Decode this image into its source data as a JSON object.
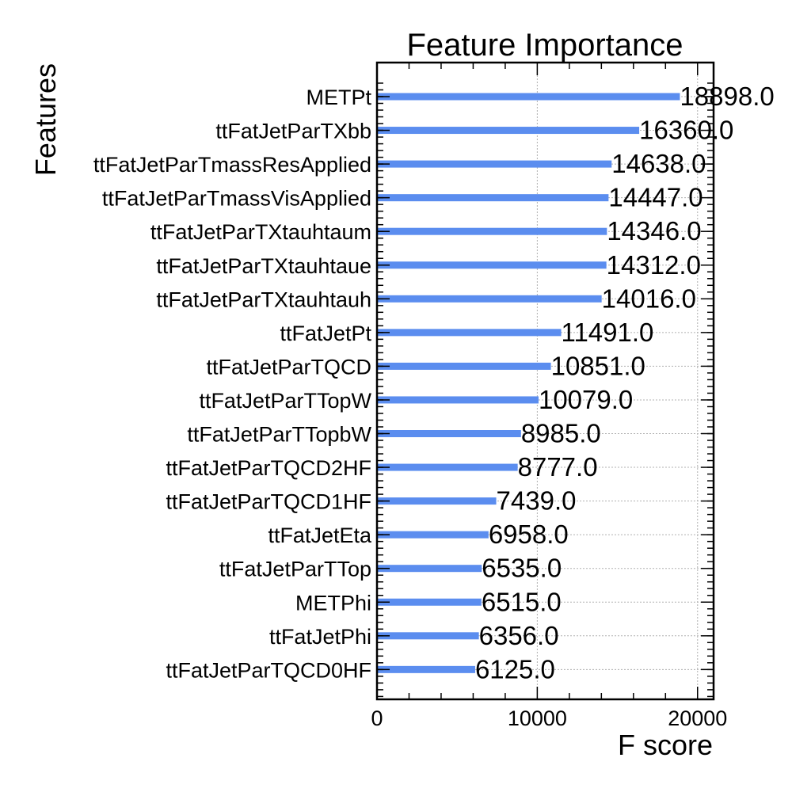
{
  "chart_data": {
    "type": "bar",
    "orientation": "horizontal",
    "title": "Feature Importance",
    "xlabel": "F score",
    "ylabel": "Features",
    "xlim": [
      0,
      21000
    ],
    "xticks": [
      "0",
      "10000",
      "20000"
    ],
    "grid": true,
    "bar_color": "#5b8def",
    "categories": [
      "METPt",
      "ttFatJetParTXbb",
      "ttFatJetParTmassResApplied",
      "ttFatJetParTmassVisApplied",
      "ttFatJetParTXtauhtaum",
      "ttFatJetParTXtauhtaue",
      "ttFatJetParTXtauhtauh",
      "ttFatJetPt",
      "ttFatJetParTQCD",
      "ttFatJetParTTopW",
      "ttFatJetParTTopbW",
      "ttFatJetParTQCD2HF",
      "ttFatJetParTQCD1HF",
      "ttFatJetEta",
      "ttFatJetParTTop",
      "METPhi",
      "ttFatJetPhi",
      "ttFatJetParTQCD0HF"
    ],
    "values": [
      18898,
      16360,
      14638,
      14447,
      14346,
      14312,
      14016,
      11491,
      10851,
      10079,
      8985,
      8777,
      7439,
      6958,
      6535,
      6515,
      6356,
      6125
    ],
    "value_labels": [
      "18898.0",
      "16360.0",
      "14638.0",
      "14447.0",
      "14346.0",
      "14312.0",
      "14016.0",
      "11491.0",
      "10851.0",
      "10079.0",
      "8985.0",
      "8777.0",
      "7439.0",
      "6958.0",
      "6535.0",
      "6515.0",
      "6356.0",
      "6125.0"
    ]
  }
}
